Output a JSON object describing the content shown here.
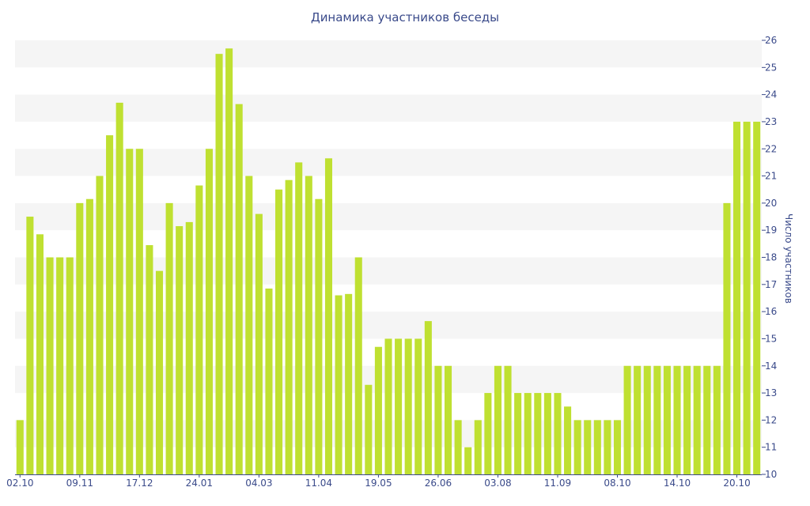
{
  "chart_data": {
    "type": "bar",
    "title": "Динамика участников беседы",
    "ylabel": "Число участников",
    "xlabel": "",
    "ylim": [
      10,
      26
    ],
    "y_axis_side": "right",
    "grid": "horizontal alternating bands",
    "legend": "none",
    "colors": {
      "bar": "#bfe031",
      "band": "#f5f5f5",
      "text": "#3a4a8a"
    },
    "x_tick_labels": [
      {
        "label": "02.10",
        "index": 0
      },
      {
        "label": "09.11",
        "index": 6
      },
      {
        "label": "17.12",
        "index": 12
      },
      {
        "label": "24.01",
        "index": 18
      },
      {
        "label": "04.03",
        "index": 24
      },
      {
        "label": "11.04",
        "index": 30
      },
      {
        "label": "19.05",
        "index": 36
      },
      {
        "label": "26.06",
        "index": 42
      },
      {
        "label": "03.08",
        "index": 48
      },
      {
        "label": "11.09",
        "index": 54
      },
      {
        "label": "08.10",
        "index": 60
      },
      {
        "label": "14.10",
        "index": 66
      },
      {
        "label": "20.10",
        "index": 72
      }
    ],
    "y_ticks": [
      10,
      11,
      12,
      13,
      14,
      15,
      16,
      17,
      18,
      19,
      20,
      21,
      22,
      23,
      24,
      25,
      26
    ],
    "values": [
      12,
      19.5,
      18.85,
      18,
      18,
      18,
      20,
      20.15,
      21,
      22.5,
      23.7,
      22,
      22,
      18.45,
      17.5,
      20,
      19.15,
      19.3,
      20.65,
      22,
      25.5,
      25.7,
      23.65,
      21,
      19.6,
      16.85,
      20.5,
      20.85,
      21.5,
      21,
      20.15,
      21.65,
      16.6,
      16.65,
      18,
      13.3,
      14.7,
      15,
      15,
      15,
      15,
      15.65,
      14,
      14,
      12,
      11,
      12,
      13,
      14,
      14,
      13,
      13,
      13,
      13,
      13,
      12.5,
      12,
      12,
      12,
      12,
      12,
      14,
      14,
      14,
      14,
      14,
      14,
      14,
      14,
      14,
      14,
      20,
      23,
      23,
      23
    ]
  }
}
